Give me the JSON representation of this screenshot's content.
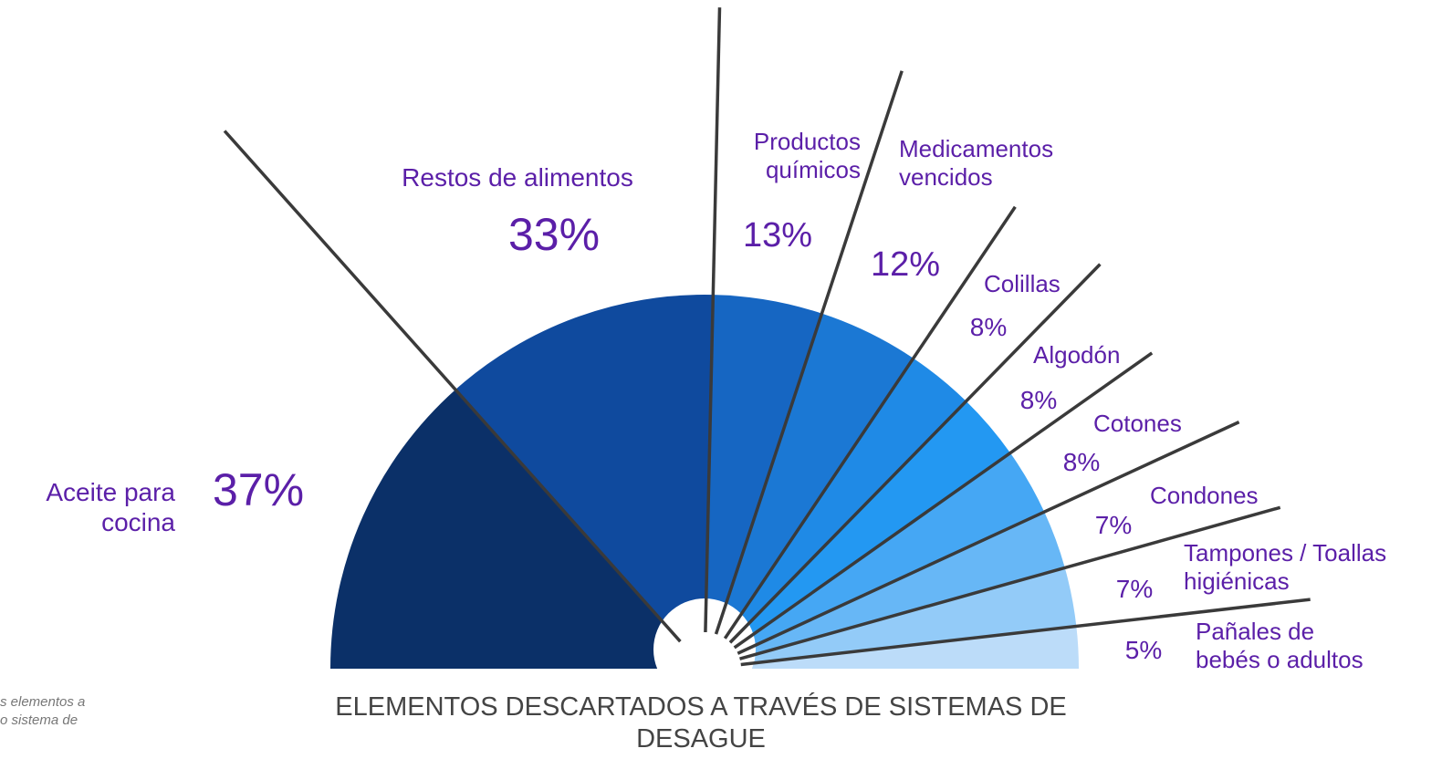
{
  "chart_data": {
    "type": "semi_pie",
    "title": "ELEMENTOS DESCARTADOS A TRAVÉS DE SISTEMAS DE DESAGUE",
    "footnote": "s elementos a\no sistema de",
    "categories": [
      "Aceite para\ncocina",
      "Restos de alimentos",
      "Productos\nquímicos",
      "Medicamentos\nvencidos",
      "Colillas",
      "Algodón",
      "Cotones",
      "Condones",
      "Tampones / Toallas\nhigiénicas",
      "Pañales de\nbebés o adultos"
    ],
    "values": [
      37,
      33,
      13,
      12,
      8,
      8,
      8,
      7,
      7,
      5
    ],
    "value_labels": [
      "37%",
      "33%",
      "13%",
      "12%",
      "8%",
      "8%",
      "8%",
      "7%",
      "7%",
      "5%"
    ],
    "colors": [
      "#0b3068",
      "#0f4a9e",
      "#1666c2",
      "#1b78d4",
      "#1f8ae6",
      "#2398f2",
      "#45a7f4",
      "#67b7f6",
      "#93cbf8",
      "#bcdcf9"
    ]
  }
}
